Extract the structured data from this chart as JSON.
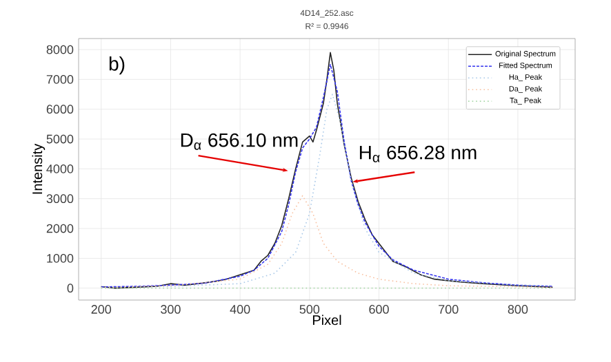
{
  "chart_data": {
    "type": "line",
    "title": "4D14_252.asc",
    "subtitle": "R² = 0.9946",
    "xlabel": "Pixel",
    "ylabel": "Intensity",
    "xlim": [
      167.5,
      882.5
    ],
    "ylim": [
      -400,
      8370
    ],
    "xticks": [
      200,
      300,
      400,
      500,
      600,
      700,
      800
    ],
    "yticks": [
      0,
      1000,
      2000,
      3000,
      4000,
      5000,
      6000,
      7000,
      8000
    ],
    "grid": true,
    "legend": "top right",
    "marker": "none",
    "annotations": [
      "b)",
      {
        "text": "D$_{α}$ 656.10 nm",
        "x": 469,
        "y": 3935
      },
      {
        "text": "H$_{α}$ 656.28 nm",
        "x": 562,
        "y": 3565
      }
    ],
    "series": [
      {
        "name": "Original Spectrum",
        "color": "#222222",
        "line_style": "solid",
        "x": [
          200,
          220,
          250,
          280,
          300,
          320,
          350,
          370,
          380,
          400,
          420,
          430,
          440,
          450,
          460,
          470,
          480,
          490,
          500,
          505,
          510,
          520,
          525,
          530,
          535,
          540,
          550,
          560,
          570,
          580,
          590,
          600,
          620,
          640,
          660,
          680,
          700,
          720,
          750,
          800,
          850
        ],
        "values": [
          50,
          0,
          30,
          60,
          150,
          100,
          180,
          250,
          300,
          450,
          600,
          900,
          1100,
          1500,
          2100,
          3000,
          4000,
          4900,
          5100,
          4900,
          5300,
          6200,
          7000,
          7900,
          7300,
          6200,
          4800,
          3700,
          2900,
          2300,
          1800,
          1500,
          900,
          700,
          450,
          300,
          250,
          200,
          150,
          80,
          30
        ]
      },
      {
        "name": "Fitted Spectrum",
        "color": "#3333ee",
        "line_style": "dashed",
        "x": [
          200,
          250,
          300,
          350,
          400,
          420,
          440,
          460,
          470,
          480,
          490,
          500,
          510,
          520,
          530,
          540,
          550,
          560,
          570,
          580,
          600,
          620,
          650,
          700,
          750,
          800,
          850
        ],
        "values": [
          40,
          60,
          100,
          170,
          400,
          600,
          1000,
          1900,
          2800,
          3900,
          4700,
          5000,
          5400,
          6400,
          7500,
          6600,
          4900,
          3600,
          2800,
          2200,
          1400,
          950,
          600,
          300,
          180,
          100,
          60
        ]
      },
      {
        "name": "Ha_ Peak",
        "color": "#a8c8e8",
        "line_style": "dotted",
        "x": [
          200,
          300,
          400,
          450,
          480,
          500,
          515,
          525,
          533,
          545,
          560,
          580,
          600,
          650,
          700,
          800,
          850
        ],
        "values": [
          20,
          60,
          150,
          500,
          1200,
          2500,
          4500,
          6000,
          6500,
          5500,
          3600,
          2000,
          1200,
          500,
          250,
          100,
          80
        ]
      },
      {
        "name": "Da_ Peak",
        "color": "#f8c0a0",
        "line_style": "dotted",
        "x": [
          200,
          300,
          400,
          440,
          460,
          475,
          490,
          505,
          520,
          540,
          570,
          600,
          650,
          700,
          850
        ],
        "values": [
          20,
          80,
          300,
          800,
          1500,
          2500,
          3100,
          2500,
          1500,
          900,
          500,
          300,
          150,
          80,
          30
        ]
      },
      {
        "name": "Ta_ Peak",
        "color": "#a8d8a8",
        "line_style": "dotted",
        "x": [
          200,
          850
        ],
        "values": [
          0,
          0
        ]
      }
    ]
  }
}
